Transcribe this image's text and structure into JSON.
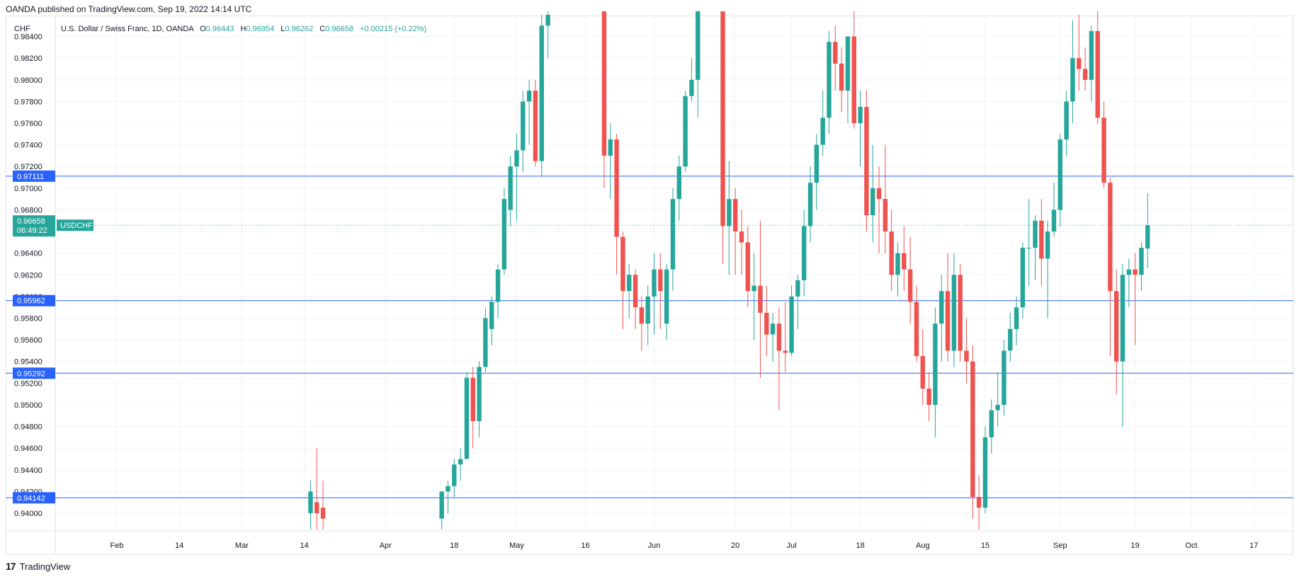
{
  "header": {
    "published": "OANDA published on TradingView.com, Sep 19, 2022 14:14 UTC"
  },
  "footer": {
    "brand": "TradingView",
    "logo_mark": "17"
  },
  "legend": {
    "currency": "CHF",
    "title": "U.S. Dollar / Swiss Franc, 1D, OANDA",
    "O": "0.96443",
    "H": "0.96954",
    "L": "0.96262",
    "C": "0.96658",
    "change": "+0.00215 (+0.22%)"
  },
  "colors": {
    "up": "#26a69a",
    "down": "#ef5350",
    "hline": "#2962ff",
    "grid": "#f0f3fa",
    "price_badge": "#26a69a"
  },
  "price_badge": {
    "value": "0.96658",
    "countdown": "06:49:22",
    "symbol": "USDCHF"
  },
  "chart_data": {
    "type": "candlestick",
    "symbol": "USDCHF",
    "timeframe": "1D",
    "ylim": [
      0.9385,
      0.9858
    ],
    "yticks": [
      "0.94000",
      "0.94200",
      "0.94400",
      "0.94600",
      "0.94800",
      "0.95000",
      "0.95200",
      "0.95400",
      "0.95600",
      "0.95800",
      "0.96000",
      "0.96200",
      "0.96400",
      "0.96600",
      "0.96800",
      "0.97000",
      "0.97200",
      "0.97400",
      "0.97600",
      "0.97800",
      "0.98000",
      "0.98200",
      "0.98400"
    ],
    "xticks": [
      {
        "label": "Feb",
        "index": 0
      },
      {
        "label": "14",
        "index": 10
      },
      {
        "label": "Mar",
        "index": 20
      },
      {
        "label": "14",
        "index": 30
      },
      {
        "label": "Apr",
        "index": 43
      },
      {
        "label": "18",
        "index": 54
      },
      {
        "label": "May",
        "index": 64
      },
      {
        "label": "16",
        "index": 75
      },
      {
        "label": "Jun",
        "index": 86
      },
      {
        "label": "20",
        "index": 99
      },
      {
        "label": "Jul",
        "index": 108
      },
      {
        "label": "18",
        "index": 119
      },
      {
        "label": "Aug",
        "index": 129
      },
      {
        "label": "15",
        "index": 139
      },
      {
        "label": "Sep",
        "index": 151
      },
      {
        "label": "19",
        "index": 163
      },
      {
        "label": "Oct",
        "index": 172
      },
      {
        "label": "17",
        "index": 182
      }
    ],
    "horizontal_lines": [
      {
        "label": "0.97111",
        "value": 0.97111
      },
      {
        "label": "0.95962",
        "value": 0.95962
      },
      {
        "label": "0.95292",
        "value": 0.95292
      },
      {
        "label": "0.94142",
        "value": 0.94142
      }
    ],
    "last_price": 0.96658,
    "candles": [
      {
        "i": 31,
        "o": 0.94,
        "h": 0.943,
        "l": 0.9385,
        "c": 0.942
      },
      {
        "i": 32,
        "o": 0.941,
        "h": 0.946,
        "l": 0.9385,
        "c": 0.94
      },
      {
        "i": 33,
        "o": 0.9405,
        "h": 0.943,
        "l": 0.9385,
        "c": 0.9395
      },
      {
        "i": 52,
        "o": 0.9395,
        "h": 0.942,
        "l": 0.9385,
        "c": 0.942
      },
      {
        "i": 53,
        "o": 0.942,
        "h": 0.943,
        "l": 0.94,
        "c": 0.9425
      },
      {
        "i": 54,
        "o": 0.9425,
        "h": 0.945,
        "l": 0.9415,
        "c": 0.9445
      },
      {
        "i": 55,
        "o": 0.9445,
        "h": 0.946,
        "l": 0.943,
        "c": 0.945
      },
      {
        "i": 56,
        "o": 0.945,
        "h": 0.953,
        "l": 0.945,
        "c": 0.9525
      },
      {
        "i": 57,
        "o": 0.9525,
        "h": 0.9535,
        "l": 0.946,
        "c": 0.9485
      },
      {
        "i": 58,
        "o": 0.9485,
        "h": 0.954,
        "l": 0.947,
        "c": 0.9535
      },
      {
        "i": 59,
        "o": 0.9535,
        "h": 0.959,
        "l": 0.953,
        "c": 0.958
      },
      {
        "i": 60,
        "o": 0.957,
        "h": 0.96,
        "l": 0.9555,
        "c": 0.9595
      },
      {
        "i": 61,
        "o": 0.9595,
        "h": 0.963,
        "l": 0.958,
        "c": 0.9625
      },
      {
        "i": 62,
        "o": 0.9625,
        "h": 0.97,
        "l": 0.962,
        "c": 0.969
      },
      {
        "i": 63,
        "o": 0.968,
        "h": 0.973,
        "l": 0.9665,
        "c": 0.972
      },
      {
        "i": 64,
        "o": 0.972,
        "h": 0.975,
        "l": 0.967,
        "c": 0.9735
      },
      {
        "i": 65,
        "o": 0.9735,
        "h": 0.979,
        "l": 0.9715,
        "c": 0.978
      },
      {
        "i": 66,
        "o": 0.978,
        "h": 0.98,
        "l": 0.974,
        "c": 0.979
      },
      {
        "i": 67,
        "o": 0.979,
        "h": 0.98,
        "l": 0.972,
        "c": 0.9725
      },
      {
        "i": 68,
        "o": 0.9725,
        "h": 0.986,
        "l": 0.971,
        "c": 0.985
      },
      {
        "i": 69,
        "o": 0.985,
        "h": 0.987,
        "l": 0.982,
        "c": 0.986
      },
      {
        "i": 78,
        "o": 0.9865,
        "h": 0.987,
        "l": 0.97,
        "c": 0.973
      },
      {
        "i": 79,
        "o": 0.973,
        "h": 0.976,
        "l": 0.969,
        "c": 0.9745
      },
      {
        "i": 80,
        "o": 0.9745,
        "h": 0.975,
        "l": 0.962,
        "c": 0.9655
      },
      {
        "i": 81,
        "o": 0.9655,
        "h": 0.966,
        "l": 0.957,
        "c": 0.9605
      },
      {
        "i": 82,
        "o": 0.9605,
        "h": 0.963,
        "l": 0.958,
        "c": 0.962
      },
      {
        "i": 83,
        "o": 0.962,
        "h": 0.9625,
        "l": 0.957,
        "c": 0.959
      },
      {
        "i": 84,
        "o": 0.959,
        "h": 0.96,
        "l": 0.955,
        "c": 0.9575
      },
      {
        "i": 85,
        "o": 0.9575,
        "h": 0.961,
        "l": 0.9555,
        "c": 0.96
      },
      {
        "i": 86,
        "o": 0.96,
        "h": 0.964,
        "l": 0.9565,
        "c": 0.9625
      },
      {
        "i": 87,
        "o": 0.9625,
        "h": 0.964,
        "l": 0.957,
        "c": 0.9605
      },
      {
        "i": 88,
        "o": 0.9575,
        "h": 0.963,
        "l": 0.956,
        "c": 0.9625
      },
      {
        "i": 89,
        "o": 0.9625,
        "h": 0.97,
        "l": 0.9605,
        "c": 0.969
      },
      {
        "i": 90,
        "o": 0.969,
        "h": 0.973,
        "l": 0.967,
        "c": 0.972
      },
      {
        "i": 91,
        "o": 0.972,
        "h": 0.979,
        "l": 0.9715,
        "c": 0.9785
      },
      {
        "i": 92,
        "o": 0.9785,
        "h": 0.982,
        "l": 0.978,
        "c": 0.98
      },
      {
        "i": 93,
        "o": 0.98,
        "h": 0.987,
        "l": 0.9765,
        "c": 0.9865
      },
      {
        "i": 97,
        "o": 0.9865,
        "h": 0.987,
        "l": 0.963,
        "c": 0.9665
      },
      {
        "i": 98,
        "o": 0.9665,
        "h": 0.9725,
        "l": 0.962,
        "c": 0.969
      },
      {
        "i": 99,
        "o": 0.969,
        "h": 0.97,
        "l": 0.962,
        "c": 0.966
      },
      {
        "i": 100,
        "o": 0.966,
        "h": 0.968,
        "l": 0.962,
        "c": 0.965
      },
      {
        "i": 101,
        "o": 0.965,
        "h": 0.9665,
        "l": 0.959,
        "c": 0.9605
      },
      {
        "i": 102,
        "o": 0.9605,
        "h": 0.964,
        "l": 0.956,
        "c": 0.961
      },
      {
        "i": 103,
        "o": 0.961,
        "h": 0.967,
        "l": 0.9525,
        "c": 0.9585
      },
      {
        "i": 104,
        "o": 0.9585,
        "h": 0.961,
        "l": 0.9545,
        "c": 0.9565
      },
      {
        "i": 105,
        "o": 0.9565,
        "h": 0.9585,
        "l": 0.954,
        "c": 0.9575
      },
      {
        "i": 106,
        "o": 0.9575,
        "h": 0.959,
        "l": 0.9495,
        "c": 0.955
      },
      {
        "i": 107,
        "o": 0.955,
        "h": 0.9595,
        "l": 0.953,
        "c": 0.9548
      },
      {
        "i": 108,
        "o": 0.9548,
        "h": 0.961,
        "l": 0.9545,
        "c": 0.96
      },
      {
        "i": 109,
        "o": 0.96,
        "h": 0.962,
        "l": 0.957,
        "c": 0.9615
      },
      {
        "i": 110,
        "o": 0.9615,
        "h": 0.968,
        "l": 0.96,
        "c": 0.9665
      },
      {
        "i": 111,
        "o": 0.9665,
        "h": 0.972,
        "l": 0.965,
        "c": 0.9705
      },
      {
        "i": 112,
        "o": 0.9705,
        "h": 0.975,
        "l": 0.968,
        "c": 0.974
      },
      {
        "i": 113,
        "o": 0.974,
        "h": 0.979,
        "l": 0.973,
        "c": 0.9765
      },
      {
        "i": 114,
        "o": 0.9765,
        "h": 0.9845,
        "l": 0.975,
        "c": 0.9835
      },
      {
        "i": 115,
        "o": 0.9835,
        "h": 0.985,
        "l": 0.979,
        "c": 0.9815
      },
      {
        "i": 116,
        "o": 0.9815,
        "h": 0.983,
        "l": 0.977,
        "c": 0.979
      },
      {
        "i": 117,
        "o": 0.979,
        "h": 0.984,
        "l": 0.976,
        "c": 0.984
      },
      {
        "i": 118,
        "o": 0.984,
        "h": 0.987,
        "l": 0.9755,
        "c": 0.976
      },
      {
        "i": 119,
        "o": 0.976,
        "h": 0.979,
        "l": 0.972,
        "c": 0.9775
      },
      {
        "i": 120,
        "o": 0.9775,
        "h": 0.979,
        "l": 0.966,
        "c": 0.9675
      },
      {
        "i": 121,
        "o": 0.9675,
        "h": 0.974,
        "l": 0.965,
        "c": 0.97
      },
      {
        "i": 122,
        "o": 0.97,
        "h": 0.972,
        "l": 0.964,
        "c": 0.969
      },
      {
        "i": 123,
        "o": 0.969,
        "h": 0.974,
        "l": 0.964,
        "c": 0.966
      },
      {
        "i": 124,
        "o": 0.966,
        "h": 0.968,
        "l": 0.9605,
        "c": 0.962
      },
      {
        "i": 125,
        "o": 0.962,
        "h": 0.965,
        "l": 0.96,
        "c": 0.964
      },
      {
        "i": 126,
        "o": 0.964,
        "h": 0.9665,
        "l": 0.9605,
        "c": 0.9625
      },
      {
        "i": 127,
        "o": 0.9625,
        "h": 0.9655,
        "l": 0.9575,
        "c": 0.9595
      },
      {
        "i": 128,
        "o": 0.9595,
        "h": 0.961,
        "l": 0.954,
        "c": 0.9545
      },
      {
        "i": 129,
        "o": 0.9545,
        "h": 0.957,
        "l": 0.95,
        "c": 0.9515
      },
      {
        "i": 130,
        "o": 0.9515,
        "h": 0.953,
        "l": 0.9485,
        "c": 0.95
      },
      {
        "i": 131,
        "o": 0.95,
        "h": 0.959,
        "l": 0.947,
        "c": 0.9575
      },
      {
        "i": 132,
        "o": 0.9575,
        "h": 0.962,
        "l": 0.954,
        "c": 0.9605
      },
      {
        "i": 133,
        "o": 0.9605,
        "h": 0.964,
        "l": 0.954,
        "c": 0.955
      },
      {
        "i": 134,
        "o": 0.955,
        "h": 0.964,
        "l": 0.9535,
        "c": 0.962
      },
      {
        "i": 135,
        "o": 0.962,
        "h": 0.963,
        "l": 0.954,
        "c": 0.955
      },
      {
        "i": 136,
        "o": 0.955,
        "h": 0.958,
        "l": 0.952,
        "c": 0.954
      },
      {
        "i": 137,
        "o": 0.954,
        "h": 0.9555,
        "l": 0.9395,
        "c": 0.9415
      },
      {
        "i": 138,
        "o": 0.9415,
        "h": 0.9435,
        "l": 0.9385,
        "c": 0.9405
      },
      {
        "i": 139,
        "o": 0.9405,
        "h": 0.948,
        "l": 0.94,
        "c": 0.947
      },
      {
        "i": 140,
        "o": 0.947,
        "h": 0.9505,
        "l": 0.9455,
        "c": 0.9495
      },
      {
        "i": 141,
        "o": 0.9495,
        "h": 0.953,
        "l": 0.948,
        "c": 0.95
      },
      {
        "i": 142,
        "o": 0.95,
        "h": 0.956,
        "l": 0.949,
        "c": 0.955
      },
      {
        "i": 143,
        "o": 0.955,
        "h": 0.9585,
        "l": 0.954,
        "c": 0.957
      },
      {
        "i": 144,
        "o": 0.957,
        "h": 0.96,
        "l": 0.9555,
        "c": 0.959
      },
      {
        "i": 145,
        "o": 0.959,
        "h": 0.965,
        "l": 0.958,
        "c": 0.9645
      },
      {
        "i": 146,
        "o": 0.9645,
        "h": 0.969,
        "l": 0.961,
        "c": 0.9645
      },
      {
        "i": 147,
        "o": 0.9645,
        "h": 0.9675,
        "l": 0.9615,
        "c": 0.967
      },
      {
        "i": 148,
        "o": 0.967,
        "h": 0.969,
        "l": 0.961,
        "c": 0.9635
      },
      {
        "i": 149,
        "o": 0.9635,
        "h": 0.967,
        "l": 0.958,
        "c": 0.966
      },
      {
        "i": 150,
        "o": 0.966,
        "h": 0.9705,
        "l": 0.9655,
        "c": 0.968
      },
      {
        "i": 151,
        "o": 0.968,
        "h": 0.975,
        "l": 0.9665,
        "c": 0.9745
      },
      {
        "i": 152,
        "o": 0.9745,
        "h": 0.979,
        "l": 0.973,
        "c": 0.978
      },
      {
        "i": 153,
        "o": 0.978,
        "h": 0.9855,
        "l": 0.976,
        "c": 0.982
      },
      {
        "i": 154,
        "o": 0.982,
        "h": 0.986,
        "l": 0.979,
        "c": 0.981
      },
      {
        "i": 155,
        "o": 0.981,
        "h": 0.983,
        "l": 0.979,
        "c": 0.98
      },
      {
        "i": 156,
        "o": 0.98,
        "h": 0.985,
        "l": 0.978,
        "c": 0.9845
      },
      {
        "i": 157,
        "o": 0.9845,
        "h": 0.987,
        "l": 0.976,
        "c": 0.9765
      },
      {
        "i": 158,
        "o": 0.9765,
        "h": 0.978,
        "l": 0.97,
        "c": 0.9705
      },
      {
        "i": 159,
        "o": 0.9705,
        "h": 0.971,
        "l": 0.9545,
        "c": 0.9605
      },
      {
        "i": 160,
        "o": 0.9605,
        "h": 0.9625,
        "l": 0.951,
        "c": 0.954
      },
      {
        "i": 161,
        "o": 0.954,
        "h": 0.963,
        "l": 0.948,
        "c": 0.962
      },
      {
        "i": 162,
        "o": 0.962,
        "h": 0.9635,
        "l": 0.959,
        "c": 0.9625
      },
      {
        "i": 163,
        "o": 0.9625,
        "h": 0.964,
        "l": 0.9555,
        "c": 0.962
      },
      {
        "i": 164,
        "o": 0.962,
        "h": 0.965,
        "l": 0.9605,
        "c": 0.9645
      },
      {
        "i": 165,
        "o": 0.96443,
        "h": 0.96954,
        "l": 0.96262,
        "c": 0.96658
      }
    ]
  }
}
